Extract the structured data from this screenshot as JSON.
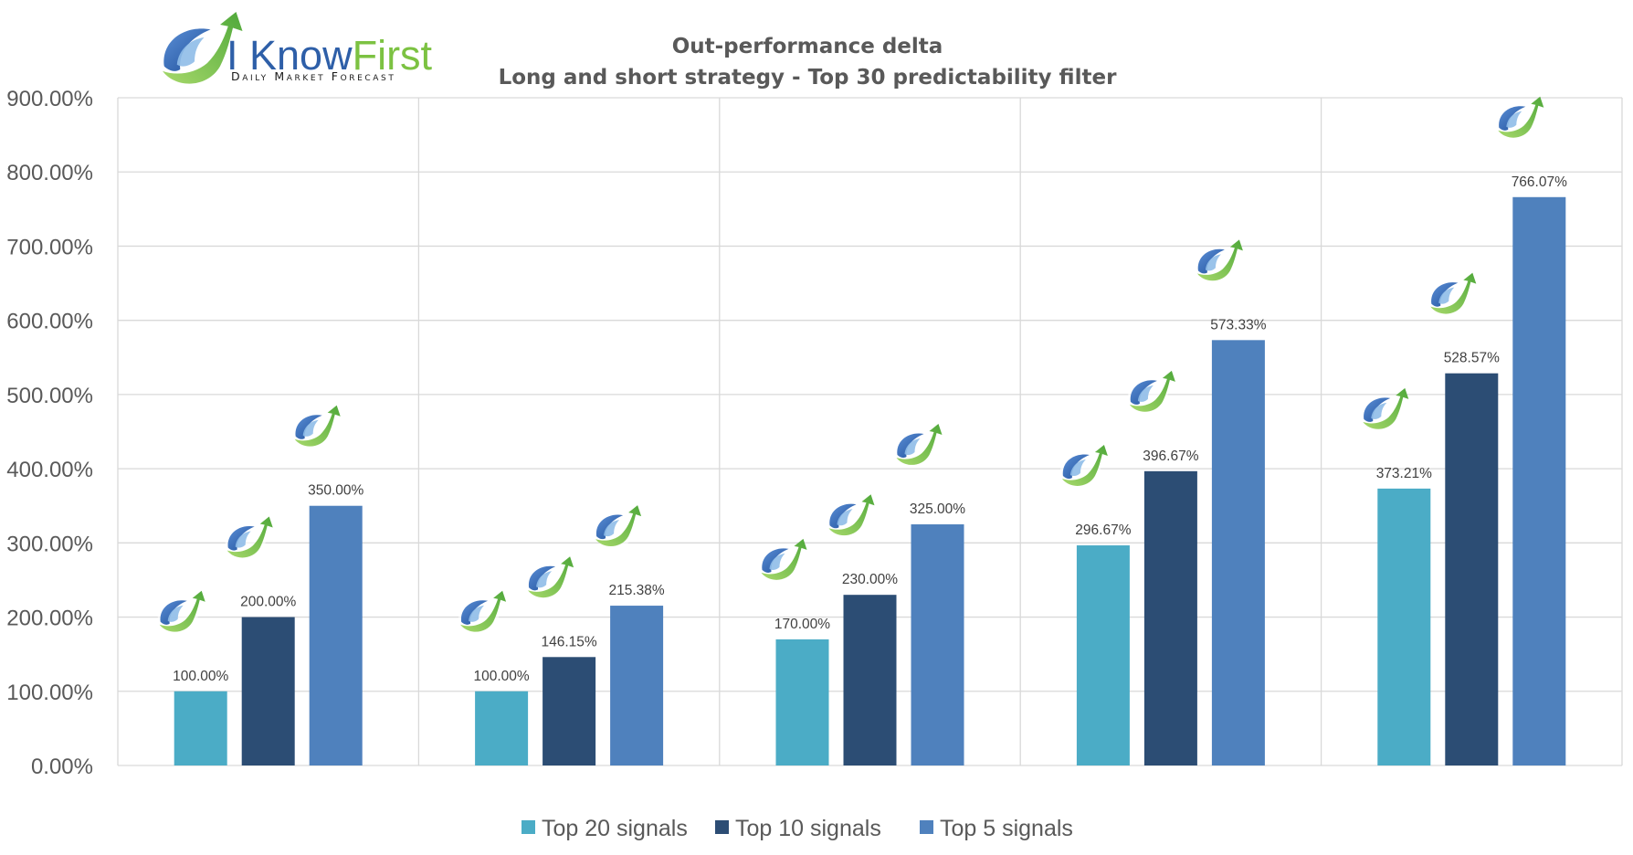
{
  "logo": {
    "name": "I KnowFirst",
    "name_part1": "I Know",
    "name_part2": "First",
    "tagline": "Daily Market Forecast"
  },
  "colors": {
    "top20": "#4bacc6",
    "top10": "#2c4d74",
    "top5": "#4f81bd",
    "grid": "#d9d9d9",
    "text": "#595959",
    "logo_blue": "#2e5fa8",
    "logo_green": "#7cc242"
  },
  "chart_data": {
    "type": "bar",
    "title": "Out-performance delta",
    "subtitle": "Long and short strategy - Top 30 predictability filter",
    "xlabel": "",
    "ylabel": "",
    "ylim": [
      0,
      900
    ],
    "y_ticks": [
      "0.00%",
      "100.00%",
      "200.00%",
      "300.00%",
      "400.00%",
      "500.00%",
      "600.00%",
      "700.00%",
      "800.00%",
      "900.00%"
    ],
    "grid": true,
    "legend_position": "bottom",
    "categories": [
      "",
      "",
      "",
      "",
      ""
    ],
    "series": [
      {
        "name": "Top 20 signals",
        "color": "#4bacc6",
        "values": [
          100.0,
          100.0,
          170.0,
          296.67,
          373.21
        ],
        "labels": [
          "100.00%",
          "100.00%",
          "170.00%",
          "296.67%",
          "373.21%"
        ]
      },
      {
        "name": "Top 10 signals",
        "color": "#2c4d74",
        "values": [
          200.0,
          146.15,
          230.0,
          396.67,
          528.57
        ],
        "labels": [
          "200.00%",
          "146.15%",
          "230.00%",
          "396.67%",
          "528.57%"
        ]
      },
      {
        "name": "Top 5 signals",
        "color": "#4f81bd",
        "values": [
          350.0,
          215.38,
          325.0,
          573.33,
          766.07
        ],
        "labels": [
          "350.00%",
          "215.38%",
          "325.00%",
          "573.33%",
          "766.07%"
        ]
      }
    ],
    "bar_marker_icon": "i-know-first-logo-icon"
  }
}
